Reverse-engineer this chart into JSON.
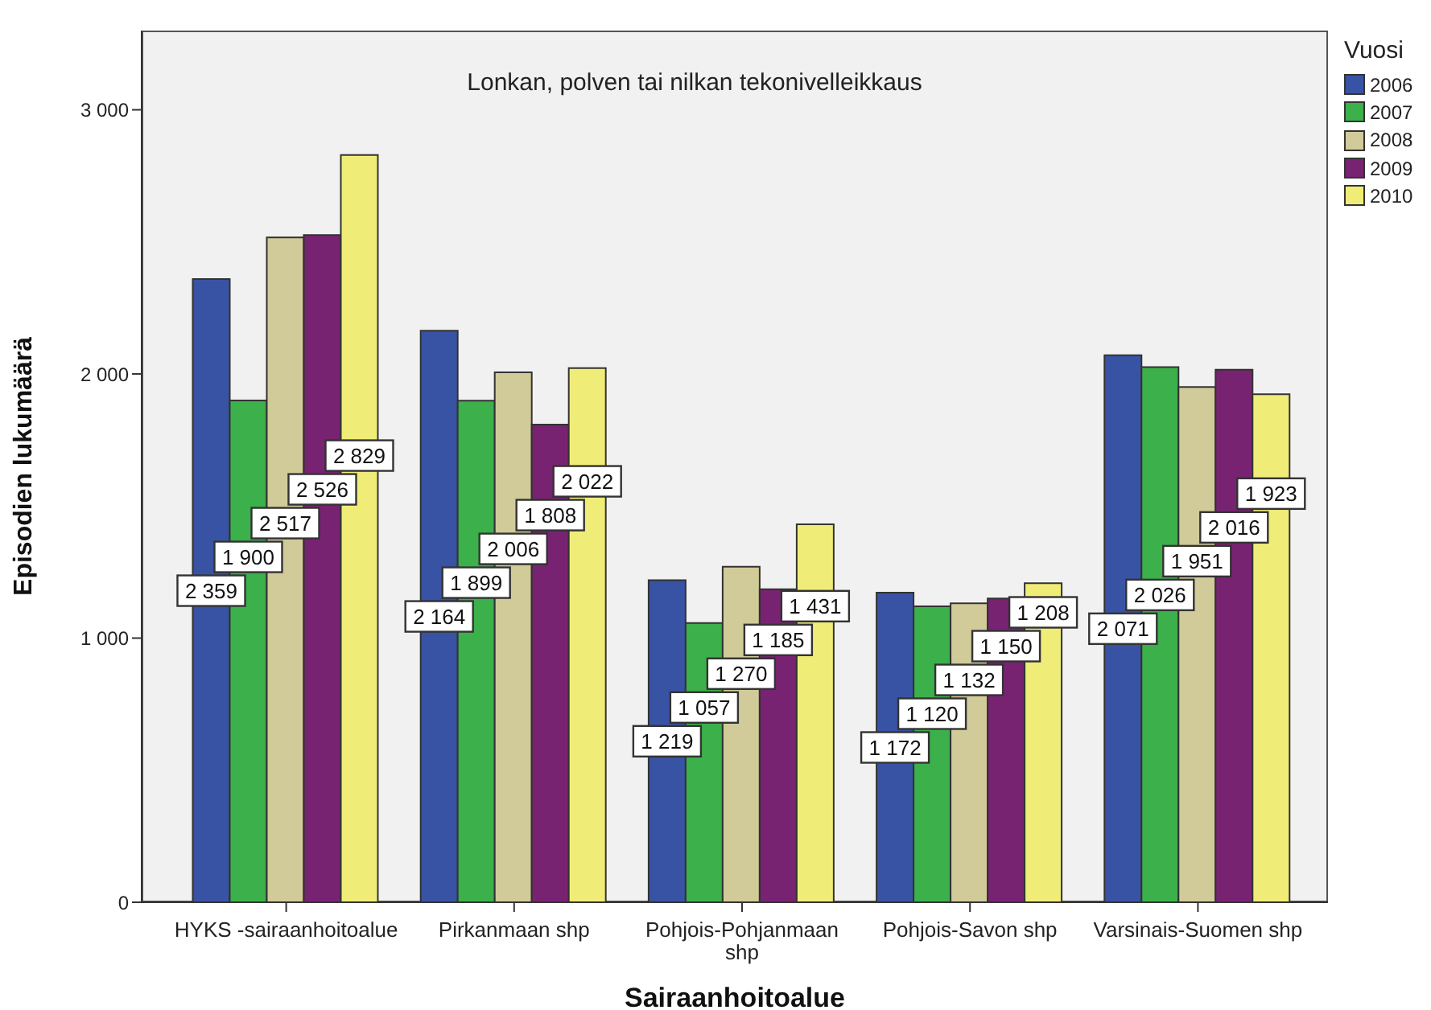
{
  "chart_data": {
    "type": "bar",
    "title": "Lonkan, polven tai nilkan tekonivelleikkaus",
    "xlabel": "Sairaanhoitoalue",
    "ylabel": "Episodien lukumäärä",
    "legend_title": "Vuosi",
    "legend": "top right",
    "categories": [
      "HYKS -sairaanhoitoalue",
      "Pirkanmaan shp",
      "Pohjois-Pohjanmaan shp",
      "Pohjois-Savon shp",
      "Varsinais-Suomen shp"
    ],
    "series": [
      {
        "name": "2006",
        "color": "#3953a4",
        "values": [
          2359,
          2164,
          1219,
          1172,
          2071
        ],
        "value_labels": [
          "2 359",
          "2 164",
          "1 219",
          "1 172",
          "2 071"
        ]
      },
      {
        "name": "2007",
        "color": "#3cb04a",
        "values": [
          1900,
          1899,
          1057,
          1120,
          2026
        ],
        "value_labels": [
          "1 900",
          "1 899",
          "1 057",
          "1 120",
          "2 026"
        ]
      },
      {
        "name": "2008",
        "color": "#d0cb98",
        "values": [
          2517,
          2006,
          1270,
          1132,
          1951
        ],
        "value_labels": [
          "2 517",
          "2 006",
          "1 270",
          "1 132",
          "1 951"
        ]
      },
      {
        "name": "2009",
        "color": "#782372",
        "values": [
          2526,
          1808,
          1185,
          1150,
          2016
        ],
        "value_labels": [
          "2 526",
          "1 808",
          "1 185",
          "1 150",
          "2 016"
        ]
      },
      {
        "name": "2010",
        "color": "#f0ec78",
        "values": [
          2829,
          2022,
          1431,
          1208,
          1923
        ],
        "value_labels": [
          "2 829",
          "2 022",
          "1 431",
          "1 208",
          "1 923"
        ]
      }
    ],
    "ylim": [
      0,
      3300
    ],
    "yticks": [
      0,
      {
        "value": 1000,
        "label": "1 000"
      },
      {
        "value": 2000,
        "label": "2 000"
      },
      {
        "value": 3000,
        "label": "3 000"
      }
    ]
  }
}
